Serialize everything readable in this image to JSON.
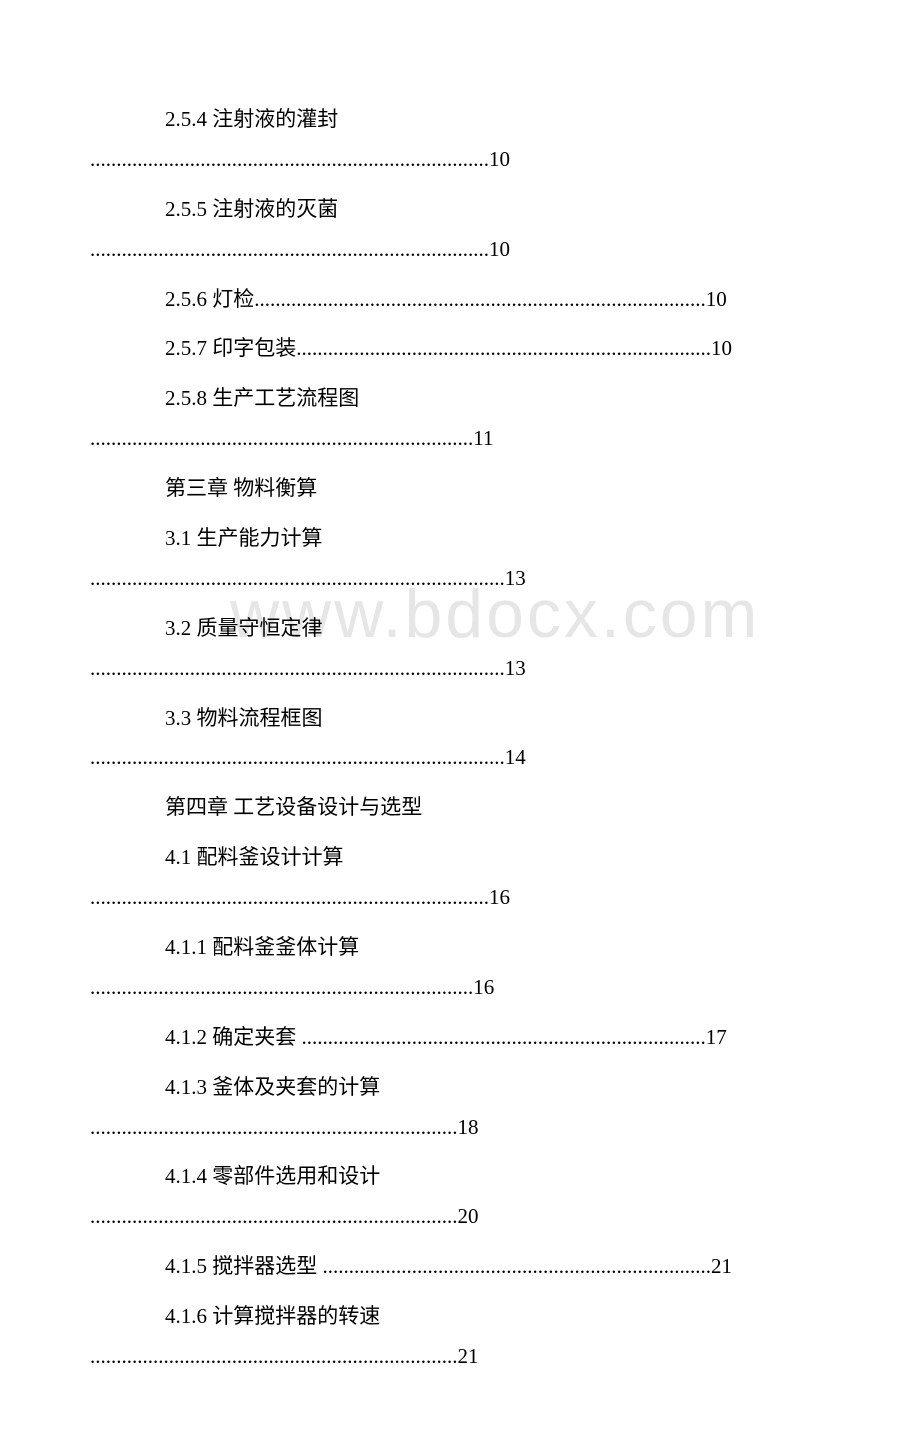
{
  "watermark": "www.bdocx.com",
  "entries": [
    {
      "type": "multiline",
      "title": "2.5.4 注射液的灌封",
      "dots": "............................................................................10"
    },
    {
      "type": "multiline",
      "title": "2.5.5 注射液的灭菌",
      "dots": "............................................................................10"
    },
    {
      "type": "single",
      "text": "2.5.6 灯检......................................................................................10"
    },
    {
      "type": "single",
      "text": "2.5.7 印字包装...............................................................................10"
    },
    {
      "type": "multiline",
      "title": "2.5.8 生产工艺流程图",
      "dots": ".........................................................................11"
    },
    {
      "type": "chapter",
      "text": "第三章 物料衡算"
    },
    {
      "type": "multiline",
      "title": "3.1 生产能力计算",
      "dots": "...............................................................................13"
    },
    {
      "type": "multiline",
      "title": "3.2 质量守恒定律",
      "dots": "...............................................................................13"
    },
    {
      "type": "multiline",
      "title": "3.3 物料流程框图",
      "dots": "...............................................................................14"
    },
    {
      "type": "chapter",
      "text": "第四章 工艺设备设计与选型"
    },
    {
      "type": "multiline",
      "title": "4.1 配料釜设计计算",
      "dots": "............................................................................16"
    },
    {
      "type": "multiline",
      "title": "4.1.1 配料釜釜体计算",
      "dots": ".........................................................................16"
    },
    {
      "type": "single",
      "text": "4.1.2 确定夹套 .............................................................................17"
    },
    {
      "type": "multiline",
      "title": "4.1.3 釜体及夹套的计算",
      "dots": "......................................................................18"
    },
    {
      "type": "multiline",
      "title": "4.1.4 零部件选用和设计",
      "dots": "......................................................................20"
    },
    {
      "type": "single",
      "text": "4.1.5 搅拌器选型 ..........................................................................21"
    },
    {
      "type": "multiline",
      "title": "4.1.6 计算搅拌器的转速",
      "dots": "......................................................................21"
    }
  ],
  "colors": {
    "text": "#000000",
    "background": "#ffffff",
    "watermark": "rgba(200,200,200,0.45)"
  },
  "fonts": {
    "body_size": 21,
    "watermark_size": 68
  }
}
